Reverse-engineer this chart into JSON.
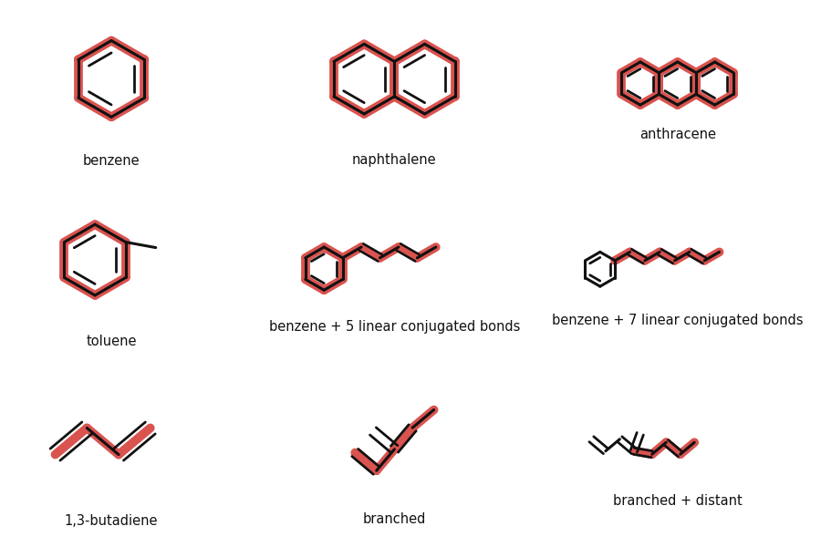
{
  "background": "#ffffff",
  "highlight_color": "#d9534f",
  "molecule_color": "#111111",
  "highlight_lw": 7,
  "bond_lw": 2.2,
  "label_fontsize": 10.5,
  "labels": [
    "benzene",
    "naphthalene",
    "anthracene",
    "toluene",
    "benzene + 5 linear conjugated bonds",
    "benzene + 7 linear conjugated bonds",
    "1,3-butadiene",
    "branched",
    "branched + distant"
  ]
}
